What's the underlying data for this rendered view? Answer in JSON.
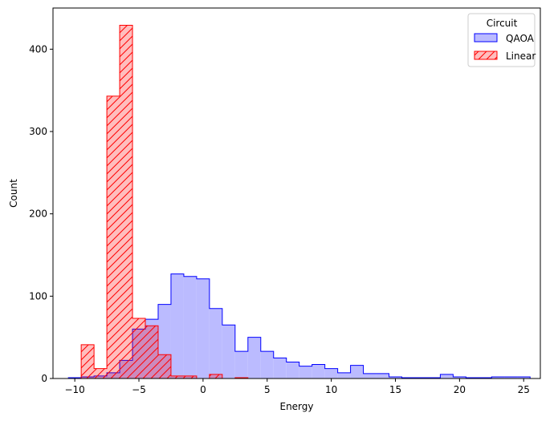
{
  "chart_data": {
    "type": "histogram",
    "xlabel": "Energy",
    "ylabel": "Count",
    "xlim": [
      -11.7,
      26.3
    ],
    "ylim": [
      0,
      450
    ],
    "x_ticks": [
      -10,
      -5,
      0,
      5,
      10,
      15,
      20,
      25
    ],
    "y_ticks": [
      0,
      100,
      200,
      300,
      400
    ],
    "grid": false,
    "legend": {
      "title": "Circuit",
      "placement": "top-right"
    },
    "series": [
      {
        "name": "QAOA",
        "color": "#0000ff",
        "fill": "#bbbbff",
        "fill_opacity": 1,
        "hatch": false,
        "bin_start": -10.5,
        "bin_width": 1.0,
        "counts": [
          1,
          2,
          3,
          7,
          22,
          60,
          72,
          90,
          127,
          124,
          121,
          85,
          65,
          33,
          50,
          33,
          25,
          20,
          15,
          17,
          12,
          7,
          16,
          6,
          6,
          2,
          1,
          1,
          1,
          5,
          2,
          1,
          1,
          2,
          2,
          2
        ]
      },
      {
        "name": "Linear",
        "color": "#ff0000",
        "fill": "#ff0000",
        "fill_opacity": 0.26,
        "hatch": true,
        "bin_start": -9.5,
        "bin_width": 1.0,
        "counts": [
          41,
          12,
          343,
          429,
          73,
          64,
          29,
          3,
          3,
          0,
          5,
          0,
          1
        ]
      }
    ]
  }
}
